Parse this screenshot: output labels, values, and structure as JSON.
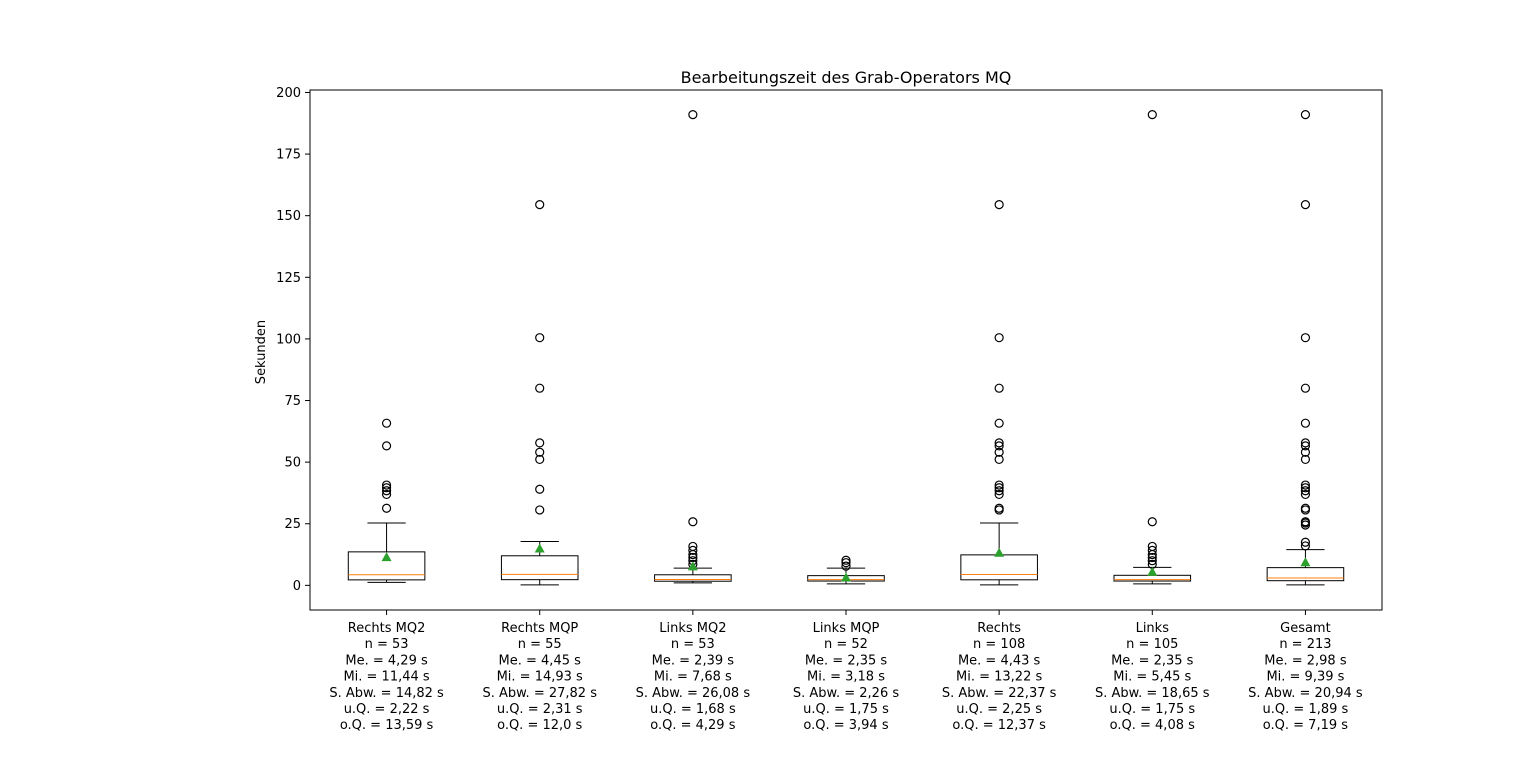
{
  "chart_data": {
    "type": "boxplot",
    "title": "Bearbeitungszeit des Grab-Operators MQ",
    "ylabel": "Sekunden",
    "ylim": [
      -10,
      201
    ],
    "yticks": [
      0,
      25,
      50,
      75,
      100,
      125,
      150,
      175,
      200
    ],
    "grid": false,
    "colors": {
      "box": "#000000",
      "median": "#ff7f0e",
      "mean": "#2ca02c",
      "flier": "#000000"
    },
    "groups": [
      {
        "label_lines": [
          "Rechts MQ2",
          "n = 53",
          "Me. = 4,29 s",
          "Mi. = 11,44 s",
          "S. Abw. = 14,82 s",
          "u.Q. = 2,22 s",
          "o.Q. = 13,59 s"
        ],
        "whisker_low": 1.2,
        "q1": 2.22,
        "median": 4.29,
        "q3": 13.59,
        "whisker_high": 25.3,
        "mean": 11.44,
        "fliers": [
          31.3,
          36.9,
          38.4,
          39.6,
          40.7,
          56.6,
          65.8
        ]
      },
      {
        "label_lines": [
          "Rechts MQP",
          "n = 55",
          "Me. = 4,45 s",
          "Mi. = 14,93 s",
          "S. Abw. = 27,82 s",
          "u.Q. = 2,31 s",
          "o.Q. = 12,0 s"
        ],
        "whisker_low": 0.2,
        "q1": 2.31,
        "median": 4.45,
        "q3": 12.0,
        "whisker_high": 17.8,
        "mean": 14.93,
        "fliers": [
          30.6,
          39.0,
          51.1,
          54.0,
          57.8,
          80.0,
          100.5,
          154.5
        ]
      },
      {
        "label_lines": [
          "Links MQ2",
          "n = 53",
          "Me. = 2,39 s",
          "Mi. = 7,68 s",
          "S. Abw. = 26,08 s",
          "u.Q. = 1,68 s",
          "o.Q. = 4,29 s"
        ],
        "whisker_low": 1.0,
        "q1": 1.68,
        "median": 2.39,
        "q3": 4.29,
        "whisker_high": 7.0,
        "mean": 7.68,
        "fliers": [
          8.5,
          10.0,
          11.3,
          12.5,
          14.2,
          15.8,
          25.8,
          191.0
        ]
      },
      {
        "label_lines": [
          "Links MQP",
          "n = 52",
          "Me. = 2,35 s",
          "Mi. = 3,18 s",
          "S. Abw. = 2,26 s",
          "u.Q. = 1,75 s",
          "o.Q. = 3,94 s"
        ],
        "whisker_low": 0.6,
        "q1": 1.75,
        "median": 2.35,
        "q3": 3.94,
        "whisker_high": 7.0,
        "mean": 3.18,
        "fliers": [
          7.8,
          9.2,
          10.2
        ]
      },
      {
        "label_lines": [
          "Rechts",
          "n = 108",
          "Me. = 4,43 s",
          "Mi. = 13,22 s",
          "S. Abw. = 22,37 s",
          "u.Q. = 2,25 s",
          "o.Q. = 12,37 s"
        ],
        "whisker_low": 0.2,
        "q1": 2.25,
        "median": 4.43,
        "q3": 12.37,
        "whisker_high": 25.3,
        "mean": 13.22,
        "fliers": [
          30.6,
          31.3,
          36.9,
          38.4,
          39.6,
          40.7,
          51.1,
          54.0,
          56.6,
          57.8,
          65.8,
          80.0,
          100.5,
          154.5
        ]
      },
      {
        "label_lines": [
          "Links",
          "n = 105",
          "Me. = 2,35 s",
          "Mi. = 5,45 s",
          "S. Abw. = 18,65 s",
          "u.Q. = 1,75 s",
          "o.Q. = 4,08 s"
        ],
        "whisker_low": 0.6,
        "q1": 1.75,
        "median": 2.35,
        "q3": 4.08,
        "whisker_high": 7.3,
        "mean": 5.45,
        "fliers": [
          8.5,
          10.0,
          11.3,
          12.5,
          14.2,
          15.8,
          25.8,
          191.0
        ]
      },
      {
        "label_lines": [
          "Gesamt",
          "n = 213",
          "Me. = 2,98 s",
          "Mi. = 9,39 s",
          "S. Abw. = 20,94 s",
          "u.Q. = 1,89 s",
          "o.Q. = 7,19 s"
        ],
        "whisker_low": 0.2,
        "q1": 1.89,
        "median": 2.98,
        "q3": 7.19,
        "whisker_high": 14.5,
        "mean": 9.39,
        "fliers": [
          16.0,
          17.5,
          24.5,
          25.3,
          25.8,
          30.6,
          31.3,
          36.9,
          38.4,
          39.6,
          40.7,
          51.1,
          54.0,
          56.6,
          57.8,
          65.8,
          80.0,
          100.5,
          154.5,
          191.0
        ]
      }
    ]
  }
}
